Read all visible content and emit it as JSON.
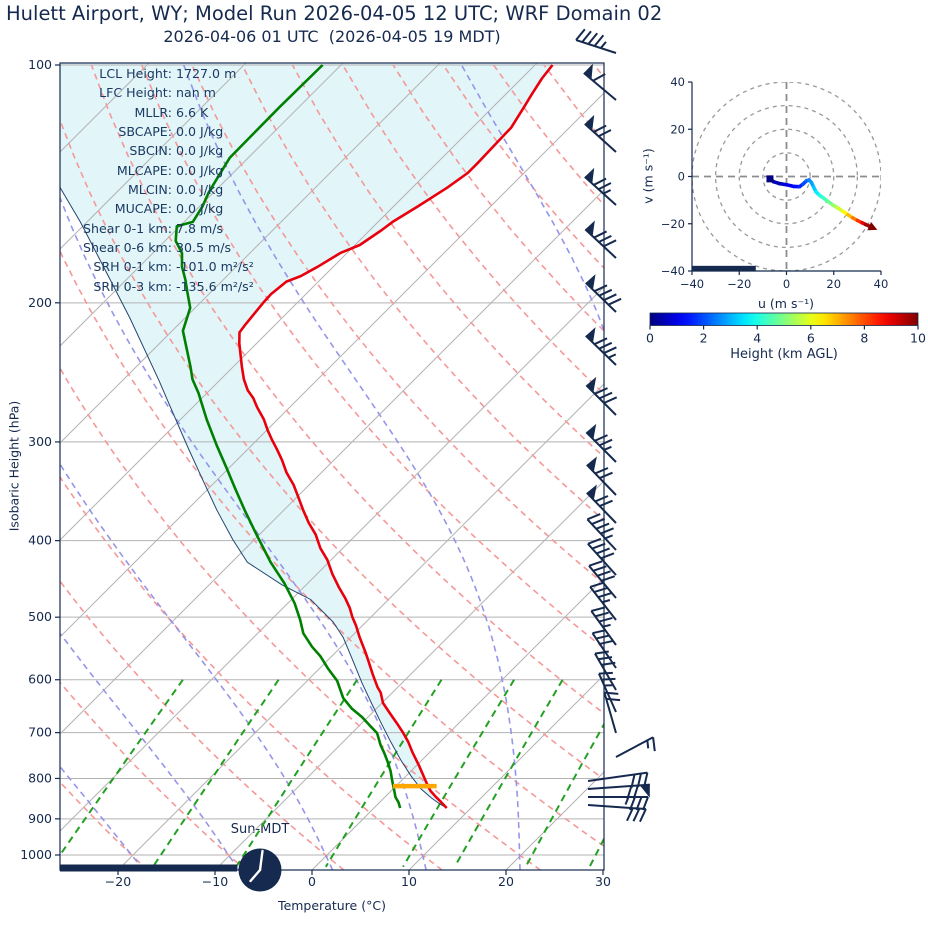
{
  "header": {
    "title": "Hulett Airport, WY; Model Run 2026-04-05 12 UTC; WRF Domain 02",
    "subtitle": "2026-04-06 01 UTC  (2026-04-05 19 MDT)"
  },
  "colors": {
    "navy": "#152a4e",
    "temperature": "#e8000d",
    "dewpoint": "#008000",
    "parcel": "#25456e",
    "shade": "#e2f5f9",
    "lcl": "#ffa600",
    "dry_adiabat": "#f59898",
    "moist_adiabat": "#9595ea",
    "mixing_ratio": "#22a022",
    "grid": "#b3b3b3",
    "ring": "#999999"
  },
  "skewt": {
    "xlabel": "Temperature (°C)",
    "ylabel": "Isobaric Height (hPa)",
    "sun_label": "Sun-MDT",
    "x_ticks": [
      -20,
      -10,
      0,
      10,
      20,
      30
    ],
    "p_ticks": [
      100,
      200,
      300,
      400,
      500,
      600,
      700,
      800,
      900,
      1000
    ],
    "annotations": [
      {
        "label": "LCL Height:",
        "value": "1727.0 m"
      },
      {
        "label": "LFC Height:",
        "value": "nan m"
      },
      {
        "label": "MLLR:",
        "value": "6.6 K"
      },
      {
        "label": "SBCAPE:",
        "value": "0.0 J/kg"
      },
      {
        "label": "SBCIN:",
        "value": "0.0 J/kg"
      },
      {
        "label": "MLCAPE:",
        "value": "0.0 J/kg"
      },
      {
        "label": "MLCIN:",
        "value": "0.0 J/kg"
      },
      {
        "label": "MUCAPE:",
        "value": "0.0 J/kg"
      },
      {
        "label": "Shear 0-1 km:",
        "value": "7.8 m/s"
      },
      {
        "label": "Shear 0-6 km:",
        "value": "30.5 m/s"
      },
      {
        "label": "SRH 0-1 km:",
        "value": "-101.0 m²/s²"
      },
      {
        "label": "SRH 0-3 km:",
        "value": "-135.6 m²/s²"
      }
    ]
  },
  "hodograph": {
    "xlabel": "u (m s⁻¹)",
    "ylabel": "v (m s⁻¹)",
    "x_ticks": [
      -40,
      -20,
      0,
      20,
      40
    ],
    "y_ticks": [
      -40,
      -20,
      0,
      20,
      40
    ]
  },
  "colorbar": {
    "label": "Height (km AGL)",
    "ticks": [
      0,
      2,
      4,
      6,
      8,
      10
    ]
  },
  "chart_data": [
    {
      "type": "line",
      "title": "Skew-T log-P sounding",
      "xlabel": "Temperature (°C)",
      "ylabel": "Isobaric Height (hPa)",
      "xlim": [
        -26,
        30
      ],
      "pressure_lim": [
        100,
        1045
      ],
      "series": [
        {
          "name": "temperature",
          "points": [
            [
              100,
              -58.2
            ],
            [
              104,
              -57.9
            ],
            [
              109,
              -57.3
            ],
            [
              113,
              -56.8
            ],
            [
              120,
              -56.0
            ],
            [
              127,
              -55.9
            ],
            [
              133,
              -55.8
            ],
            [
              137,
              -55.8
            ],
            [
              143,
              -56.4
            ],
            [
              151,
              -57.5
            ],
            [
              158,
              -58.5
            ],
            [
              162,
              -58.8
            ],
            [
              169,
              -59.5
            ],
            [
              173,
              -60.7
            ],
            [
              180,
              -61.6
            ],
            [
              185,
              -62.4
            ],
            [
              188,
              -63.3
            ],
            [
              195,
              -63.6
            ],
            [
              200,
              -63.5
            ],
            [
              213,
              -63.1
            ],
            [
              218,
              -62.9
            ],
            [
              225,
              -61.8
            ],
            [
              241,
              -59.1
            ],
            [
              250,
              -57.6
            ],
            [
              258,
              -56.1
            ],
            [
              264,
              -54.7
            ],
            [
              271,
              -53.4
            ],
            [
              281,
              -51.4
            ],
            [
              290,
              -49.9
            ],
            [
              298,
              -48.5
            ],
            [
              307,
              -46.9
            ],
            [
              316,
              -45.4
            ],
            [
              328,
              -43.6
            ],
            [
              340,
              -41.6
            ],
            [
              352,
              -39.9
            ],
            [
              366,
              -38.0
            ],
            [
              380,
              -36.1
            ],
            [
              393,
              -34.2
            ],
            [
              409,
              -32.3
            ],
            [
              423,
              -30.4
            ],
            [
              441,
              -28.4
            ],
            [
              458,
              -26.4
            ],
            [
              473,
              -24.6
            ],
            [
              487,
              -23.1
            ],
            [
              500,
              -21.9
            ],
            [
              512,
              -20.7
            ],
            [
              530,
              -19.1
            ],
            [
              553,
              -17.0
            ],
            [
              566,
              -15.9
            ],
            [
              592,
              -13.8
            ],
            [
              613,
              -12.1
            ],
            [
              623,
              -11.2
            ],
            [
              642,
              -9.9
            ],
            [
              663,
              -8.0
            ],
            [
              682,
              -6.3
            ],
            [
              701,
              -4.7
            ],
            [
              719,
              -3.3
            ],
            [
              741,
              -1.8
            ],
            [
              758,
              -0.6
            ],
            [
              771,
              0.3
            ],
            [
              799,
              2.1
            ],
            [
              818,
              3.3
            ],
            [
              830,
              4.1
            ],
            [
              845,
              5.3
            ],
            [
              857,
              6.3
            ],
            [
              872,
              7.5
            ]
          ]
        },
        {
          "name": "dewpoint",
          "points": [
            [
              100,
              -81.9
            ],
            [
              113,
              -82.0
            ],
            [
              131,
              -81.9
            ],
            [
              140,
              -81.0
            ],
            [
              145,
              -80.5
            ],
            [
              151,
              -79.7
            ],
            [
              158,
              -79.1
            ],
            [
              160,
              -80.3
            ],
            [
              167,
              -78.9
            ],
            [
              173,
              -77.0
            ],
            [
              180,
              -75.6
            ],
            [
              187,
              -73.9
            ],
            [
              194,
              -72.4
            ],
            [
              203,
              -70.5
            ],
            [
              217,
              -68.9
            ],
            [
              241,
              -64.4
            ],
            [
              250,
              -62.9
            ],
            [
              260,
              -60.9
            ],
            [
              281,
              -57.3
            ],
            [
              303,
              -53.6
            ],
            [
              324,
              -50.2
            ],
            [
              344,
              -47.2
            ],
            [
              367,
              -43.9
            ],
            [
              393,
              -40.3
            ],
            [
              426,
              -36.0
            ],
            [
              453,
              -32.4
            ],
            [
              480,
              -29.3
            ],
            [
              504,
              -27.0
            ],
            [
              524,
              -25.3
            ],
            [
              545,
              -23.0
            ],
            [
              560,
              -21.2
            ],
            [
              580,
              -19.2
            ],
            [
              602,
              -16.9
            ],
            [
              633,
              -14.5
            ],
            [
              653,
              -12.5
            ],
            [
              669,
              -10.6
            ],
            [
              689,
              -8.6
            ],
            [
              701,
              -7.4
            ],
            [
              726,
              -5.8
            ],
            [
              743,
              -4.6
            ],
            [
              763,
              -3.3
            ],
            [
              783,
              -2.1
            ],
            [
              804,
              -1.0
            ],
            [
              827,
              0.2
            ],
            [
              845,
              1.1
            ],
            [
              857,
              1.9
            ],
            [
              872,
              2.7
            ]
          ]
        },
        {
          "name": "parcel",
          "points": [
            [
              143,
              -96.3
            ],
            [
              158,
              -90.7
            ],
            [
              181,
              -83.4
            ],
            [
              209,
              -75.7
            ],
            [
              250,
              -66.4
            ],
            [
              276,
              -61.4
            ],
            [
              304,
              -56.5
            ],
            [
              335,
              -51.5
            ],
            [
              366,
              -46.9
            ],
            [
              399,
              -42.2
            ],
            [
              426,
              -38.4
            ],
            [
              455,
              -32.5
            ],
            [
              475,
              -28.0
            ],
            [
              507,
              -23.4
            ],
            [
              530,
              -20.8
            ],
            [
              566,
              -17.5
            ],
            [
              606,
              -14.1
            ],
            [
              642,
              -11.1
            ],
            [
              681,
              -8.0
            ],
            [
              719,
              -5.1
            ],
            [
              758,
              -2.2
            ],
            [
              794,
              0.5
            ],
            [
              825,
              2.9
            ],
            [
              847,
              4.9
            ],
            [
              862,
              6.4
            ],
            [
              872,
              7.5
            ]
          ]
        }
      ],
      "lcl_bar": {
        "pressure": 818,
        "t_min": -0.3,
        "t_max": 4.2
      },
      "mixing_ratios_g_kg": [
        0.4,
        1,
        2,
        4,
        7,
        10,
        16,
        24,
        32
      ],
      "wind_barbs": [
        [
          53,
          18,
          0,
          4,
          1
        ],
        [
          100,
          40,
          1,
          1,
          0
        ],
        [
          152,
          42,
          1,
          2,
          0
        ],
        [
          205,
          42,
          1,
          2,
          1
        ],
        [
          258,
          43,
          1,
          3,
          0
        ],
        [
          312,
          44,
          1,
          4,
          0
        ],
        [
          365,
          44,
          1,
          3,
          1
        ],
        [
          415,
          45,
          1,
          3,
          0
        ],
        [
          462,
          45,
          1,
          2,
          1
        ],
        [
          495,
          46,
          1,
          2,
          0
        ],
        [
          523,
          46,
          1,
          2,
          0
        ],
        [
          550,
          47,
          0,
          4,
          1
        ],
        [
          575,
          48,
          0,
          4,
          0
        ],
        [
          598,
          50,
          0,
          4,
          0
        ],
        [
          620,
          52,
          0,
          3,
          1
        ],
        [
          645,
          54,
          0,
          3,
          1
        ],
        [
          668,
          56,
          0,
          3,
          0
        ],
        [
          690,
          60,
          0,
          3,
          0
        ],
        [
          712,
          66,
          0,
          2,
          1
        ],
        [
          733,
          74,
          0,
          2,
          0
        ],
        [
          757,
          152,
          0,
          1,
          1
        ],
        [
          781,
          172,
          0,
          3,
          0,
          588,
          60
        ],
        [
          789,
          176,
          1,
          2,
          0,
          588,
          62
        ],
        [
          797,
          180,
          0,
          3,
          1,
          588,
          60
        ],
        [
          805,
          184,
          0,
          3,
          0,
          588,
          58
        ]
      ]
    },
    {
      "type": "line",
      "title": "Hodograph",
      "xlabel": "u (m s⁻¹)",
      "ylabel": "v (m s⁻¹)",
      "xlim": [
        -40,
        40
      ],
      "ylim": [
        -40,
        40
      ],
      "rings": [
        10,
        20,
        30,
        40
      ],
      "trace": [
        [
          -7,
          -1,
          0
        ],
        [
          -5.5,
          -2.2,
          0.3
        ],
        [
          -3,
          -3,
          0.6
        ],
        [
          0,
          -3.5,
          0.9
        ],
        [
          3,
          -4.2,
          1.2
        ],
        [
          5.5,
          -4.3,
          1.5
        ],
        [
          7,
          -3.2,
          1.8
        ],
        [
          8.5,
          -1.8,
          2.1
        ],
        [
          9.5,
          -1.5,
          2.4
        ],
        [
          10.5,
          -2.5,
          2.7
        ],
        [
          11.5,
          -4.5,
          3.0
        ],
        [
          12.5,
          -6.5,
          3.4
        ],
        [
          14,
          -8,
          3.8
        ],
        [
          15.5,
          -9,
          4.2
        ],
        [
          17.5,
          -10.5,
          4.6
        ],
        [
          19.5,
          -12,
          5.0
        ],
        [
          21.5,
          -13.2,
          5.5
        ],
        [
          24,
          -14.8,
          6.0
        ],
        [
          26,
          -16.2,
          6.6
        ],
        [
          28,
          -17.5,
          7.2
        ],
        [
          30,
          -18.6,
          7.9
        ],
        [
          32,
          -19.6,
          8.6
        ],
        [
          33.5,
          -20.3,
          9.3
        ],
        [
          35,
          -21,
          10
        ]
      ],
      "ground_bar": {
        "v": -39,
        "u_min": -40,
        "u_max": -13
      }
    },
    {
      "type": "colorbar",
      "label": "Height (km AGL)",
      "range": [
        0,
        10
      ],
      "ticks": [
        0,
        2,
        4,
        6,
        8,
        10
      ],
      "colormap": "jet"
    }
  ]
}
